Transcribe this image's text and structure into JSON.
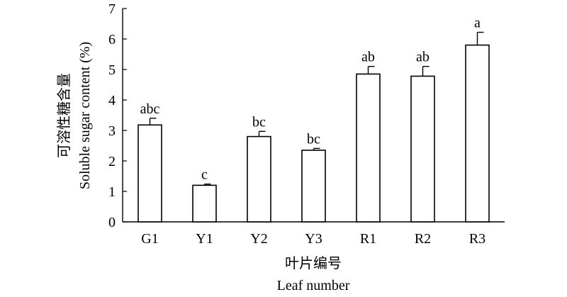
{
  "chart_data": {
    "type": "bar",
    "categories": [
      "G1",
      "Y1",
      "Y2",
      "Y3",
      "R1",
      "R2",
      "R3"
    ],
    "values": [
      3.18,
      1.2,
      2.8,
      2.35,
      4.85,
      4.78,
      5.8
    ],
    "errors": [
      0.22,
      0.04,
      0.17,
      0.06,
      0.25,
      0.32,
      0.42
    ],
    "significance": [
      "abc",
      "c",
      "bc",
      "bc",
      "ab",
      "ab",
      "a"
    ],
    "ylabel_cn": "可溶性糖含量",
    "ylabel_en": "Soluble sugar content (%)",
    "xlabel_cn": "叶片编号",
    "xlabel_en": "Leaf number",
    "ylim": [
      0,
      7
    ],
    "yticks": [
      0,
      1,
      2,
      3,
      4,
      5,
      6,
      7
    ],
    "grid": false,
    "bar_fill": "#ffffff",
    "bar_stroke": "#000000"
  }
}
